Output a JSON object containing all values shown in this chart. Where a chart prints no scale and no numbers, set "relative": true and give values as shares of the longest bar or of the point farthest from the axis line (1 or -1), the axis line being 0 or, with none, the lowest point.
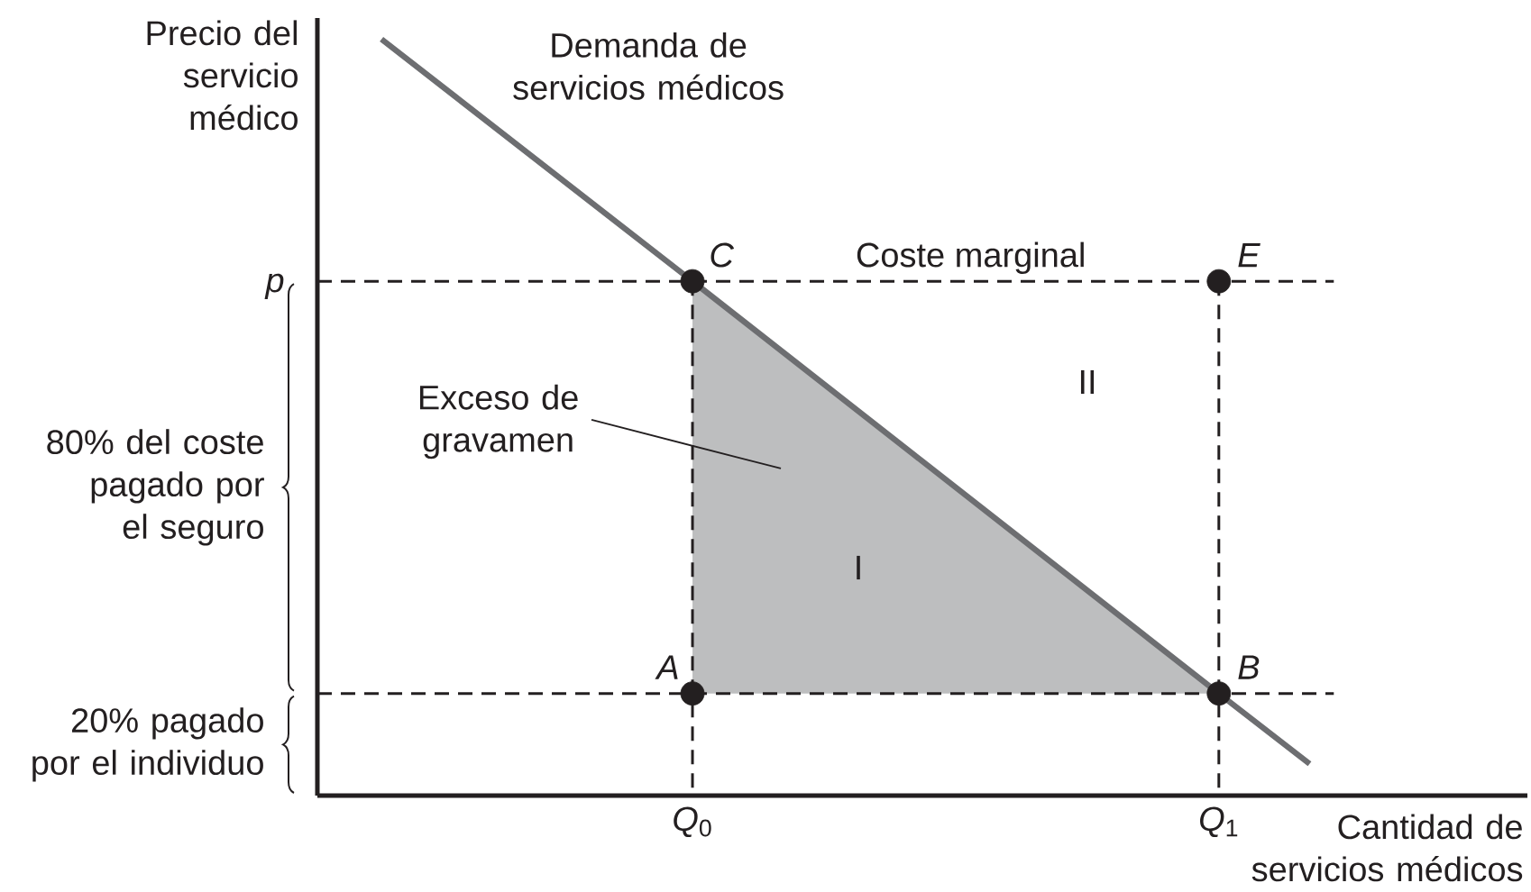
{
  "chart_data": {
    "type": "line",
    "xlabel": "Cantidad de servicios médicos",
    "ylabel": "Precio del servicio médico",
    "relative": true,
    "xlim": [
      0,
      1
    ],
    "xticks": [
      {
        "value": 0.31,
        "label": "*Q*$_{0}$"
      },
      {
        "value": 0.745,
        "label": "*Q*$_{1}$"
      }
    ],
    "series": [
      {
        "color": "#231f20",
        "line_style": "dashed",
        "x": [
          0,
          0.84
        ],
        "values": [
          0.68,
          0.68
        ]
      },
      {
        "color": "#231f20",
        "line_style": "dashed",
        "x": [
          0,
          0.84
        ],
        "values": [
          0.135,
          0.135
        ]
      },
      {
        "color": "#231f20",
        "line_style": "dashed",
        "x": [
          0.31,
          0.31
        ],
        "values": [
          0.68,
          0
        ]
      },
      {
        "color": "#231f20",
        "line_style": "dashed",
        "x": [
          0.745,
          0.745
        ],
        "values": [
          0.68,
          0
        ]
      },
      {
        "name": "Demanda de servicios médicos",
        "color": "#6d6e71",
        "line_style": "solid",
        "x": [
          0.053,
          0.31,
          0.745,
          0.82
        ],
        "values": [
          1,
          0.68,
          0.135,
          0.042
        ],
        "lower": [
          null,
          0.135,
          0.135,
          null
        ],
        "upper": [
          null,
          0.68,
          0.135,
          null
        ]
      },
      {
        "type": "scatter",
        "color": "#231f20",
        "marker": "circle",
        "x": [
          0.31,
          0.745,
          0.31,
          0.745
        ],
        "values": [
          0.68,
          0.68,
          0.135,
          0.135
        ]
      }
    ],
    "annotations": [
      {
        "text": "p",
        "x": 0,
        "y": 0.68
      },
      {
        "text": "Coste marginal",
        "x": 0.54,
        "y": 0.68
      },
      {
        "text": "C",
        "x": 0.31,
        "y": 0.68
      },
      {
        "text": "E",
        "x": 0.745,
        "y": 0.68
      },
      {
        "text": "A",
        "x": 0.31,
        "y": 0.135
      },
      {
        "text": "B",
        "x": 0.745,
        "y": 0.135
      },
      "II",
      "I",
      "Exceso de gravamen",
      "80% del coste pagado por el seguro",
      "20% pagado por el individuo"
    ]
  }
}
